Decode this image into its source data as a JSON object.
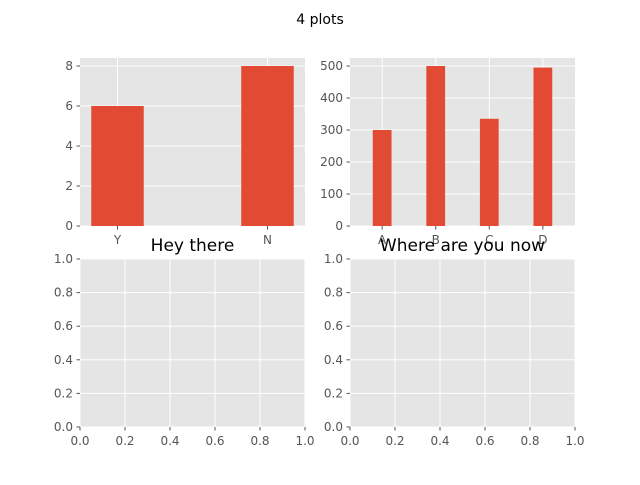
{
  "figure": {
    "suptitle": "4 plots"
  },
  "colors": {
    "bar": "#E24A33",
    "panel": "#E5E5E5",
    "grid": "#FFFFFF",
    "tick": "#555555"
  },
  "chart_data": [
    {
      "type": "bar",
      "title": "",
      "xlabel": "",
      "ylabel": "",
      "categories": [
        "Y",
        "N"
      ],
      "values": [
        6,
        8
      ],
      "xlim": [
        -0.25,
        1.25
      ],
      "ylim": [
        0,
        8.4
      ],
      "xticks": [
        "Y",
        "N"
      ],
      "yticks": [
        0,
        2,
        4,
        6,
        8
      ],
      "grid": true
    },
    {
      "type": "bar",
      "title": "",
      "xlabel": "",
      "ylabel": "",
      "categories": [
        "A",
        "B",
        "C",
        "D"
      ],
      "values": [
        300,
        500,
        335,
        495
      ],
      "xlim": [
        -0.6,
        3.6
      ],
      "ylim": [
        0,
        525
      ],
      "xticks": [
        "A",
        "B",
        "C",
        "D"
      ],
      "yticks": [
        0,
        100,
        200,
        300,
        400,
        500
      ],
      "grid": true
    },
    {
      "type": "line",
      "title": "Hey there",
      "xlabel": "",
      "ylabel": "",
      "series": [],
      "xlim": [
        0,
        1
      ],
      "ylim": [
        0,
        1
      ],
      "xticks": [
        "0.0",
        "0.2",
        "0.4",
        "0.6",
        "0.8",
        "1.0"
      ],
      "yticks": [
        "0.0",
        "0.2",
        "0.4",
        "0.6",
        "0.8",
        "1.0"
      ],
      "grid": true
    },
    {
      "type": "line",
      "title": "Where are you now",
      "xlabel": "",
      "ylabel": "",
      "series": [],
      "xlim": [
        0,
        1
      ],
      "ylim": [
        0,
        1
      ],
      "xticks": [
        "0.0",
        "0.2",
        "0.4",
        "0.6",
        "0.8",
        "1.0"
      ],
      "yticks": [
        "0.0",
        "0.2",
        "0.4",
        "0.6",
        "0.8",
        "1.0"
      ],
      "grid": true
    }
  ]
}
